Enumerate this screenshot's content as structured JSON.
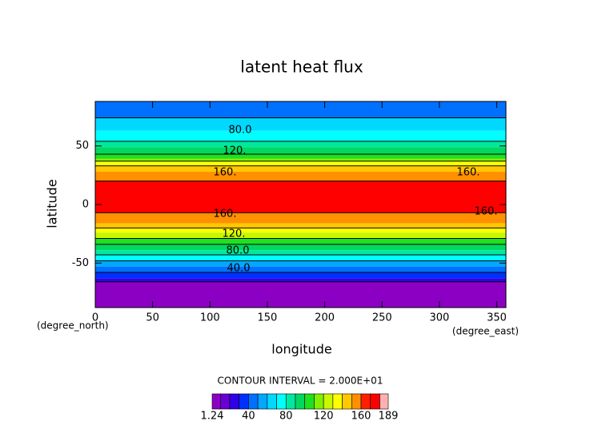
{
  "chart_data": {
    "type": "contour",
    "title": "latent heat flux",
    "xlabel": "longitude",
    "ylabel": "latitude",
    "xunit": "(degree_east)",
    "yunit": "(degree_north)",
    "xlim": [
      0,
      358
    ],
    "ylim": [
      -88,
      88
    ],
    "xticks": [
      0,
      50,
      100,
      150,
      200,
      250,
      300,
      350
    ],
    "yticks": [
      -50,
      0,
      50
    ],
    "bands": [
      {
        "from": 88,
        "to": 74,
        "value": 45
      },
      {
        "from": 74,
        "to": 63,
        "value": 65
      },
      {
        "from": 63,
        "to": 54,
        "value": 75
      },
      {
        "from": 54,
        "to": 49,
        "value": 85
      },
      {
        "from": 49,
        "to": 43,
        "value": 95
      },
      {
        "from": 43,
        "to": 39,
        "value": 105
      },
      {
        "from": 39,
        "to": 37,
        "value": 115
      },
      {
        "from": 37,
        "to": 33,
        "value": 135
      },
      {
        "from": 33,
        "to": 28,
        "value": 145
      },
      {
        "from": 28,
        "to": 20,
        "value": 155
      },
      {
        "from": 20,
        "to": -7,
        "value": 170
      },
      {
        "from": -7,
        "to": -16,
        "value": 155
      },
      {
        "from": -16,
        "to": -20,
        "value": 145
      },
      {
        "from": -20,
        "to": -24,
        "value": 135
      },
      {
        "from": -24,
        "to": -29,
        "value": 125
      },
      {
        "from": -29,
        "to": -34,
        "value": 105
      },
      {
        "from": -34,
        "to": -39,
        "value": 95
      },
      {
        "from": -39,
        "to": -43,
        "value": 85
      },
      {
        "from": -43,
        "to": -48,
        "value": 75
      },
      {
        "from": -48,
        "to": -53,
        "value": 55
      },
      {
        "from": -53,
        "to": -58,
        "value": 45
      },
      {
        "from": -58,
        "to": -63,
        "value": 35
      },
      {
        "from": -63,
        "to": -66,
        "value": 25
      },
      {
        "from": -66,
        "to": -88,
        "value": 5
      }
    ],
    "contour_labels": [
      "80.0",
      "120.",
      "160.",
      "160.",
      "160.",
      "160.",
      "120.",
      "80.0",
      "40.0"
    ],
    "contour_interval": "CONTOUR INTERVAL = 2.000E+01",
    "colorbar": {
      "levels": [
        1.24,
        10,
        20,
        30,
        40,
        50,
        60,
        70,
        80,
        90,
        100,
        110,
        120,
        130,
        140,
        150,
        160,
        170,
        180,
        189
      ],
      "colors": [
        "#8c00c4",
        "#6a00d4",
        "#3000e8",
        "#0030ff",
        "#0070ff",
        "#00a8ff",
        "#00d8ff",
        "#00ffff",
        "#00e8a0",
        "#00d860",
        "#20e020",
        "#80f000",
        "#c8f800",
        "#ffff00",
        "#ffc800",
        "#ff9000",
        "#ff2000",
        "#ff0000",
        "#ffb0b0"
      ],
      "ticks": [
        1.24,
        40,
        80,
        120,
        160,
        189
      ]
    }
  }
}
